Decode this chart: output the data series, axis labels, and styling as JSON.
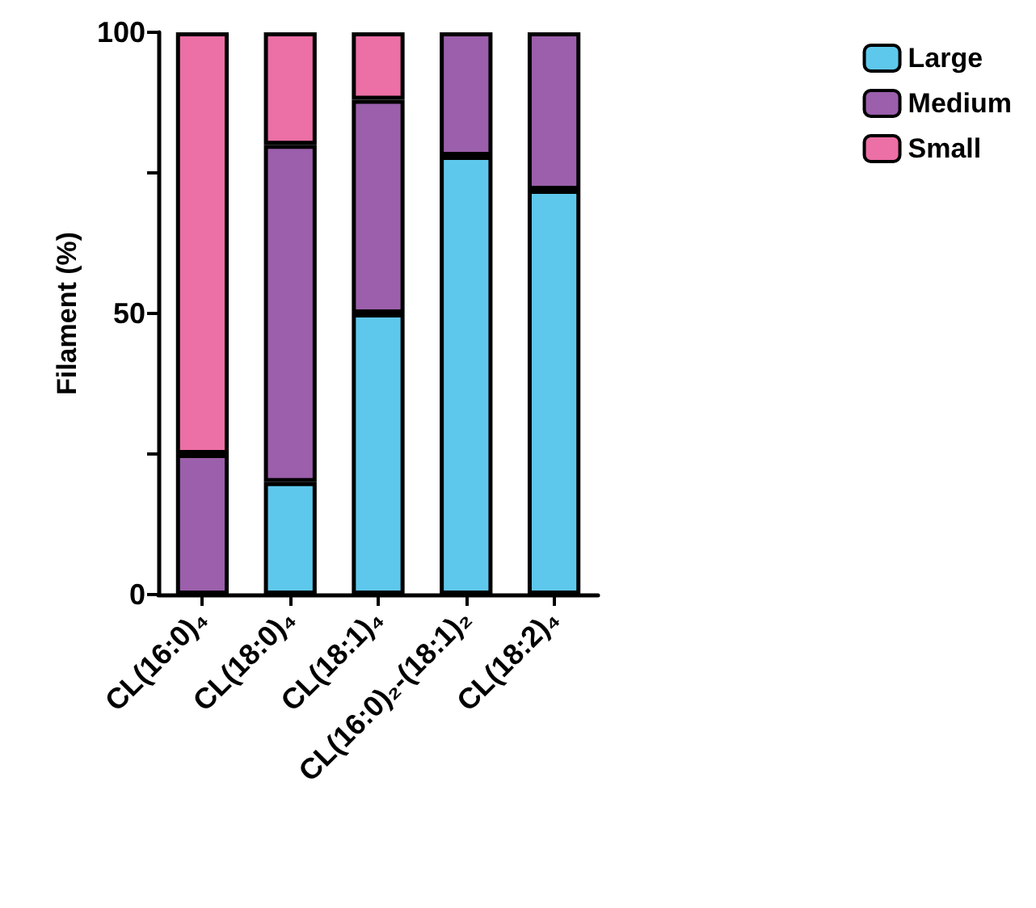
{
  "chart_data": {
    "type": "bar",
    "stacked": true,
    "ylabel": "Filament (%)",
    "categories": [
      "CL(16:0)₄",
      "CL(18:0)₄",
      "CL(18:1)₄",
      "CL(16:0)₂-(18:1)₂",
      "CL(18:2)₄"
    ],
    "series": [
      {
        "name": "Large",
        "color": "#5ec8ec",
        "values": [
          0,
          20,
          50,
          78,
          72
        ]
      },
      {
        "name": "Medium",
        "color": "#9b5fab",
        "values": [
          25,
          60,
          38,
          22,
          28
        ]
      },
      {
        "name": "Small",
        "color": "#ec6fa5",
        "values": [
          75,
          20,
          12,
          0,
          0
        ]
      }
    ],
    "ylim": [
      0,
      100
    ],
    "yticks": [
      0,
      {
        "value": 25,
        "label": null
      },
      50,
      {
        "value": 75,
        "label": null
      },
      100
    ],
    "grid": false,
    "legend": "top right"
  }
}
